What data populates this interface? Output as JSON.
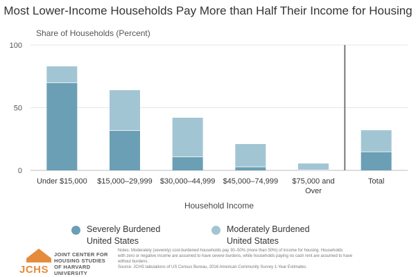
{
  "chart_data": {
    "type": "bar",
    "stacked": true,
    "title": "Most Lower-Income Households Pay More than Half Their Income for Housing",
    "ylabel": "Share of Households (Percent)",
    "xlabel": "Household Income",
    "ylim": [
      0,
      100
    ],
    "yticks": [
      0,
      50,
      100
    ],
    "categories": [
      "Under $15,000",
      "$15,000–29,999",
      "$30,000–44,999",
      "$45,000–74,999",
      "$75,000 and Over",
      "Total"
    ],
    "series": [
      {
        "name": "Severely Burdened United States",
        "color": "#6a9fb5",
        "values": [
          70,
          32,
          11,
          3,
          0.5,
          15
        ]
      },
      {
        "name": "Moderately Burdened United States",
        "color": "#a2c5d3",
        "values": [
          13,
          32,
          31,
          18,
          5,
          17
        ]
      }
    ],
    "separator_before_last": true,
    "legend_position": "bottom"
  },
  "legend": {
    "severe_line1": "Severely Burdened",
    "severe_line2": "United States",
    "moderate_line1": "Moderately Burdened",
    "moderate_line2": "United States"
  },
  "logo": {
    "mark": "JCHS",
    "line1": "JOINT CENTER FOR",
    "line2": "HOUSING STUDIES",
    "line3": "OF HARVARD UNIVERSITY"
  },
  "notes": {
    "line1": "Notes: Moderately (severely) cost-burdened households pay 30–50% (more than 50%) of income for housing. Households",
    "line2": "with zero or negative income are assumed to have severe burdens, while households paying no cash rent are assumed to have",
    "line3": "without burdens.",
    "line4": "Source: JCHS tabulations of US Census Bureau, 2016 American Community Survey 1-Year Estimates."
  }
}
